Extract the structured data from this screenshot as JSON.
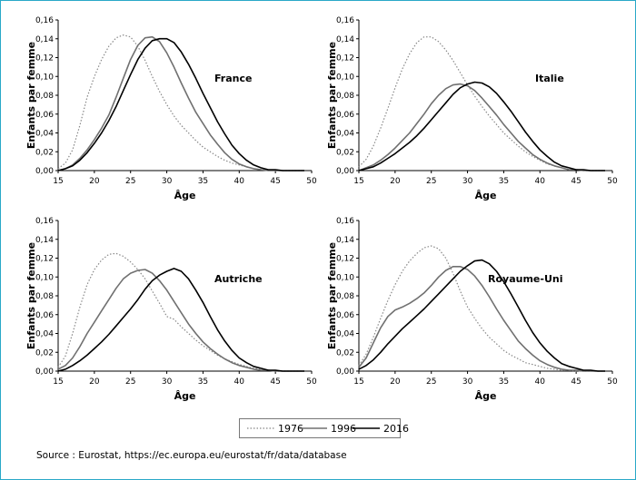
{
  "chart_data": [
    {
      "type": "line",
      "title": "France",
      "xlabel": "Âge",
      "ylabel": "Enfants par femme",
      "xlim": [
        15,
        50
      ],
      "ylim": [
        0,
        0.16
      ],
      "xticks": [
        "15",
        "20",
        "25",
        "30",
        "35",
        "40",
        "45",
        "50"
      ],
      "yticks": [
        "0,00",
        "0,02",
        "0,04",
        "0,06",
        "0,08",
        "0,10",
        "0,12",
        "0,14",
        "0,16"
      ],
      "x": [
        15,
        16,
        17,
        18,
        19,
        20,
        21,
        22,
        23,
        24,
        25,
        26,
        27,
        28,
        29,
        30,
        31,
        32,
        33,
        34,
        35,
        36,
        37,
        38,
        39,
        40,
        41,
        42,
        43,
        44,
        45,
        46,
        47,
        48,
        49
      ],
      "series": [
        {
          "name": "1976",
          "values": [
            0.002,
            0.008,
            0.022,
            0.048,
            0.078,
            0.1,
            0.118,
            0.132,
            0.141,
            0.144,
            0.142,
            0.132,
            0.117,
            0.1,
            0.084,
            0.07,
            0.058,
            0.048,
            0.04,
            0.032,
            0.025,
            0.02,
            0.015,
            0.011,
            0.008,
            0.006,
            0.004,
            0.002,
            0.001,
            0.001,
            0.0,
            0.0,
            0.0,
            0.0,
            0.0
          ]
        },
        {
          "name": "1996",
          "values": [
            0.0,
            0.002,
            0.006,
            0.013,
            0.022,
            0.033,
            0.045,
            0.059,
            0.078,
            0.098,
            0.118,
            0.133,
            0.141,
            0.142,
            0.137,
            0.125,
            0.11,
            0.093,
            0.077,
            0.062,
            0.05,
            0.038,
            0.028,
            0.019,
            0.012,
            0.007,
            0.004,
            0.002,
            0.001,
            0.0,
            0.0,
            0.0,
            0.0,
            0.0,
            0.0
          ]
        },
        {
          "name": "2016",
          "values": [
            0.0,
            0.002,
            0.005,
            0.011,
            0.019,
            0.029,
            0.04,
            0.053,
            0.068,
            0.085,
            0.102,
            0.118,
            0.13,
            0.138,
            0.14,
            0.14,
            0.136,
            0.126,
            0.113,
            0.098,
            0.082,
            0.067,
            0.052,
            0.039,
            0.027,
            0.018,
            0.011,
            0.006,
            0.003,
            0.001,
            0.001,
            0.0,
            0.0,
            0.0,
            0.0
          ]
        }
      ]
    },
    {
      "type": "line",
      "title": "Italie",
      "xlabel": "Âge",
      "ylabel": "Enfants par femme",
      "xlim": [
        15,
        50
      ],
      "ylim": [
        0,
        0.16
      ],
      "xticks": [
        "15",
        "20",
        "25",
        "30",
        "35",
        "40",
        "45",
        "50"
      ],
      "yticks": [
        "0,00",
        "0,02",
        "0,04",
        "0,06",
        "0,08",
        "0,10",
        "0,12",
        "0,14",
        "0,16"
      ],
      "x": [
        15,
        16,
        17,
        18,
        19,
        20,
        21,
        22,
        23,
        24,
        25,
        26,
        27,
        28,
        29,
        30,
        31,
        32,
        33,
        34,
        35,
        36,
        37,
        38,
        39,
        40,
        41,
        42,
        43,
        44,
        45,
        46,
        47,
        48,
        49
      ],
      "series": [
        {
          "name": "1976",
          "values": [
            0.004,
            0.012,
            0.026,
            0.045,
            0.066,
            0.088,
            0.108,
            0.124,
            0.136,
            0.142,
            0.142,
            0.137,
            0.128,
            0.117,
            0.104,
            0.091,
            0.079,
            0.068,
            0.058,
            0.049,
            0.04,
            0.033,
            0.026,
            0.02,
            0.015,
            0.011,
            0.007,
            0.005,
            0.003,
            0.001,
            0.001,
            0.0,
            0.0,
            0.0,
            0.0
          ]
        },
        {
          "name": "1996",
          "values": [
            0.0,
            0.003,
            0.006,
            0.011,
            0.017,
            0.024,
            0.032,
            0.04,
            0.05,
            0.06,
            0.071,
            0.08,
            0.087,
            0.091,
            0.092,
            0.09,
            0.085,
            0.077,
            0.068,
            0.059,
            0.049,
            0.04,
            0.031,
            0.024,
            0.017,
            0.012,
            0.008,
            0.005,
            0.003,
            0.001,
            0.001,
            0.0,
            0.0,
            0.0,
            0.0
          ]
        },
        {
          "name": "2016",
          "values": [
            0.0,
            0.002,
            0.004,
            0.008,
            0.013,
            0.018,
            0.024,
            0.03,
            0.037,
            0.045,
            0.054,
            0.063,
            0.072,
            0.081,
            0.088,
            0.092,
            0.094,
            0.093,
            0.089,
            0.082,
            0.073,
            0.063,
            0.052,
            0.041,
            0.031,
            0.022,
            0.015,
            0.009,
            0.005,
            0.003,
            0.001,
            0.001,
            0.0,
            0.0,
            0.0
          ]
        }
      ]
    },
    {
      "type": "line",
      "title": "Autriche",
      "xlabel": "Âge",
      "ylabel": "Enfants par femme",
      "xlim": [
        15,
        50
      ],
      "ylim": [
        0,
        0.16
      ],
      "xticks": [
        "15",
        "20",
        "25",
        "30",
        "35",
        "40",
        "45",
        "50"
      ],
      "yticks": [
        "0,00",
        "0,02",
        "0,04",
        "0,06",
        "0,08",
        "0,10",
        "0,12",
        "0,14",
        "0,16"
      ],
      "x": [
        15,
        16,
        17,
        18,
        19,
        20,
        21,
        22,
        23,
        24,
        25,
        26,
        27,
        28,
        29,
        30,
        31,
        32,
        33,
        34,
        35,
        36,
        37,
        38,
        39,
        40,
        41,
        42,
        43,
        44,
        45,
        46,
        47,
        48,
        49
      ],
      "series": [
        {
          "name": "1976",
          "values": [
            0.004,
            0.016,
            0.04,
            0.068,
            0.092,
            0.108,
            0.118,
            0.124,
            0.125,
            0.122,
            0.116,
            0.108,
            0.098,
            0.085,
            0.072,
            0.058,
            0.055,
            0.047,
            0.04,
            0.033,
            0.027,
            0.022,
            0.017,
            0.013,
            0.01,
            0.007,
            0.005,
            0.003,
            0.002,
            0.001,
            0.0,
            0.0,
            0.0,
            0.0,
            0.0
          ]
        },
        {
          "name": "1996",
          "values": [
            0.002,
            0.006,
            0.014,
            0.026,
            0.04,
            0.052,
            0.064,
            0.076,
            0.088,
            0.098,
            0.104,
            0.107,
            0.108,
            0.104,
            0.096,
            0.086,
            0.074,
            0.062,
            0.05,
            0.04,
            0.031,
            0.024,
            0.018,
            0.013,
            0.009,
            0.006,
            0.004,
            0.002,
            0.001,
            0.001,
            0.0,
            0.0,
            0.0,
            0.0,
            0.0
          ]
        },
        {
          "name": "2016",
          "values": [
            0.0,
            0.002,
            0.006,
            0.011,
            0.017,
            0.024,
            0.031,
            0.039,
            0.048,
            0.057,
            0.066,
            0.076,
            0.087,
            0.096,
            0.102,
            0.106,
            0.109,
            0.106,
            0.098,
            0.086,
            0.073,
            0.058,
            0.044,
            0.032,
            0.022,
            0.014,
            0.009,
            0.005,
            0.003,
            0.001,
            0.001,
            0.0,
            0.0,
            0.0,
            0.0
          ]
        }
      ]
    },
    {
      "type": "line",
      "title": "Royaume-Uni",
      "xlabel": "Âge",
      "ylabel": "Enfants par femme",
      "xlim": [
        15,
        50
      ],
      "ylim": [
        0,
        0.16
      ],
      "xticks": [
        "15",
        "20",
        "25",
        "30",
        "35",
        "40",
        "45",
        "50"
      ],
      "yticks": [
        "0,00",
        "0,02",
        "0,04",
        "0,06",
        "0,08",
        "0,10",
        "0,12",
        "0,14",
        "0,16"
      ],
      "x": [
        15,
        16,
        17,
        18,
        19,
        20,
        21,
        22,
        23,
        24,
        25,
        26,
        27,
        28,
        29,
        30,
        31,
        32,
        33,
        34,
        35,
        36,
        37,
        38,
        39,
        40,
        41,
        42,
        43,
        44,
        45,
        46,
        47,
        48,
        49
      ],
      "series": [
        {
          "name": "1976",
          "values": [
            0.006,
            0.018,
            0.036,
            0.056,
            0.075,
            0.092,
            0.106,
            0.117,
            0.125,
            0.131,
            0.133,
            0.13,
            0.12,
            0.104,
            0.085,
            0.068,
            0.056,
            0.045,
            0.036,
            0.029,
            0.022,
            0.017,
            0.013,
            0.009,
            0.007,
            0.005,
            0.003,
            0.002,
            0.001,
            0.001,
            0.0,
            0.0,
            0.0,
            0.0,
            0.0
          ]
        },
        {
          "name": "1996",
          "values": [
            0.004,
            0.014,
            0.03,
            0.046,
            0.058,
            0.065,
            0.068,
            0.072,
            0.077,
            0.083,
            0.091,
            0.1,
            0.107,
            0.111,
            0.111,
            0.108,
            0.101,
            0.091,
            0.079,
            0.066,
            0.054,
            0.043,
            0.032,
            0.024,
            0.017,
            0.011,
            0.007,
            0.004,
            0.002,
            0.001,
            0.001,
            0.0,
            0.0,
            0.0,
            0.0
          ]
        },
        {
          "name": "2016",
          "values": [
            0.002,
            0.006,
            0.012,
            0.02,
            0.029,
            0.037,
            0.045,
            0.052,
            0.059,
            0.066,
            0.074,
            0.082,
            0.09,
            0.098,
            0.106,
            0.112,
            0.117,
            0.118,
            0.114,
            0.106,
            0.095,
            0.082,
            0.068,
            0.054,
            0.041,
            0.03,
            0.021,
            0.014,
            0.008,
            0.005,
            0.003,
            0.001,
            0.001,
            0.0,
            0.0
          ]
        }
      ]
    }
  ],
  "series_colors": {
    "1976": "#888888",
    "1996": "#707070",
    "2016": "#000000"
  },
  "legend": [
    {
      "label": "1976",
      "style": "dotted"
    },
    {
      "label": "1996",
      "style": "solid-gray"
    },
    {
      "label": "2016",
      "style": "solid-black"
    }
  ],
  "source": "Source : Eurostat, https://ec.europa.eu/eurostat/fr/data/database"
}
